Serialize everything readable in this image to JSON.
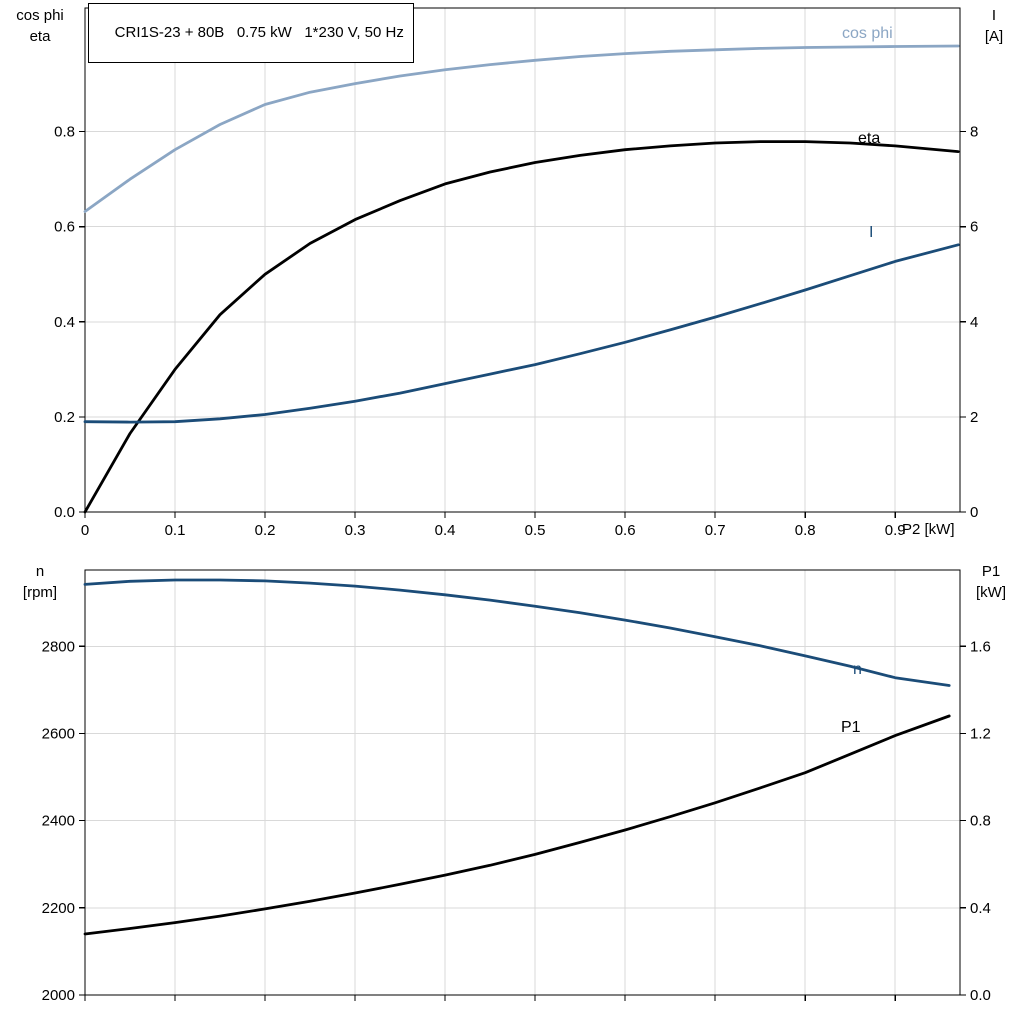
{
  "colors": {
    "light_blue": "#8BA6C4",
    "dark_blue": "#1B4C78",
    "black": "#000000",
    "grid": "#D9D9D9",
    "frame": "#000000",
    "background": "#FFFFFF"
  },
  "chart_data": [
    {
      "type": "line",
      "title": "CRI1S-23 + 80B   0.75 kW   1*230 V, 50 Hz",
      "x_axis": {
        "label": "P2 [kW]",
        "min": 0,
        "max": 0.972,
        "tick_values": [
          0,
          0.1,
          0.2,
          0.3,
          0.4,
          0.5,
          0.6,
          0.7,
          0.8,
          0.9
        ],
        "tick_labels": [
          "0",
          "0.1",
          "0.2",
          "0.3",
          "0.4",
          "0.5",
          "0.6",
          "0.7",
          "0.8",
          "0.9"
        ],
        "grid": true
      },
      "y_left": {
        "label_lines": [
          "cos phi",
          "eta"
        ],
        "min": 0,
        "max": 1.06,
        "tick_values": [
          0,
          0.2,
          0.4,
          0.6,
          0.8
        ],
        "tick_labels": [
          "0.0",
          "0.2",
          "0.4",
          "0.6",
          "0.8"
        ],
        "grid": true
      },
      "y_right": {
        "label_lines": [
          "I",
          "[A]"
        ],
        "min": 0,
        "max": 10.6,
        "tick_values": [
          0,
          2,
          4,
          6,
          8
        ],
        "tick_labels": [
          "0",
          "2",
          "4",
          "6",
          "8"
        ]
      },
      "x": [
        0,
        0.05,
        0.1,
        0.15,
        0.2,
        0.25,
        0.3,
        0.35,
        0.4,
        0.45,
        0.5,
        0.55,
        0.6,
        0.65,
        0.7,
        0.75,
        0.8,
        0.85,
        0.9,
        0.97
      ],
      "series": [
        {
          "name": "cos phi",
          "axis": "left",
          "color_key": "light_blue",
          "values": [
            0.632,
            0.7,
            0.762,
            0.815,
            0.857,
            0.883,
            0.901,
            0.917,
            0.93,
            0.941,
            0.95,
            0.958,
            0.964,
            0.969,
            0.972,
            0.975,
            0.977,
            0.978,
            0.979,
            0.98
          ]
        },
        {
          "name": "eta",
          "axis": "left",
          "color_key": "black",
          "values": [
            0.0,
            0.165,
            0.3,
            0.415,
            0.5,
            0.565,
            0.615,
            0.655,
            0.69,
            0.715,
            0.735,
            0.75,
            0.762,
            0.77,
            0.776,
            0.779,
            0.779,
            0.776,
            0.77,
            0.758
          ]
        },
        {
          "name": "I",
          "axis": "right",
          "color_key": "dark_blue",
          "values": [
            1.9,
            1.89,
            1.9,
            1.96,
            2.05,
            2.18,
            2.33,
            2.5,
            2.7,
            2.9,
            3.1,
            3.33,
            3.57,
            3.83,
            4.1,
            4.38,
            4.67,
            4.97,
            5.27,
            5.62
          ]
        }
      ]
    },
    {
      "type": "line",
      "x_axis": {
        "min": 0,
        "max": 0.972,
        "tick_values": [
          0,
          0.1,
          0.2,
          0.3,
          0.4,
          0.5,
          0.6,
          0.7,
          0.8,
          0.9
        ],
        "tick_labels": [],
        "grid": true
      },
      "y_left": {
        "label_lines": [
          "n",
          "[rpm]"
        ],
        "min": 2000,
        "max": 2975,
        "tick_values": [
          2000,
          2200,
          2400,
          2600,
          2800
        ],
        "tick_labels": [
          "2000",
          "2200",
          "2400",
          "2600",
          "2800"
        ],
        "grid": true
      },
      "y_right": {
        "label_lines": [
          "P1",
          "[kW]"
        ],
        "min": 0,
        "max": 1.95,
        "tick_values": [
          0,
          0.4,
          0.8,
          1.2,
          1.6
        ],
        "tick_labels": [
          "0.0",
          "0.4",
          "0.8",
          "1.2",
          "1.6"
        ]
      },
      "x": [
        0,
        0.05,
        0.1,
        0.15,
        0.2,
        0.25,
        0.3,
        0.35,
        0.4,
        0.45,
        0.5,
        0.55,
        0.6,
        0.65,
        0.7,
        0.75,
        0.8,
        0.85,
        0.9,
        0.96
      ],
      "series": [
        {
          "name": "n",
          "axis": "left",
          "color_key": "dark_blue",
          "values": [
            2942,
            2949,
            2952,
            2952,
            2950,
            2945,
            2938,
            2929,
            2918,
            2906,
            2892,
            2877,
            2860,
            2842,
            2822,
            2801,
            2778,
            2754,
            2728,
            2710
          ]
        },
        {
          "name": "P1",
          "axis": "right",
          "color_key": "black",
          "values": [
            0.28,
            0.305,
            0.332,
            0.362,
            0.395,
            0.43,
            0.468,
            0.508,
            0.55,
            0.595,
            0.645,
            0.7,
            0.757,
            0.818,
            0.882,
            0.95,
            1.02,
            1.105,
            1.19,
            1.28
          ]
        }
      ]
    }
  ]
}
